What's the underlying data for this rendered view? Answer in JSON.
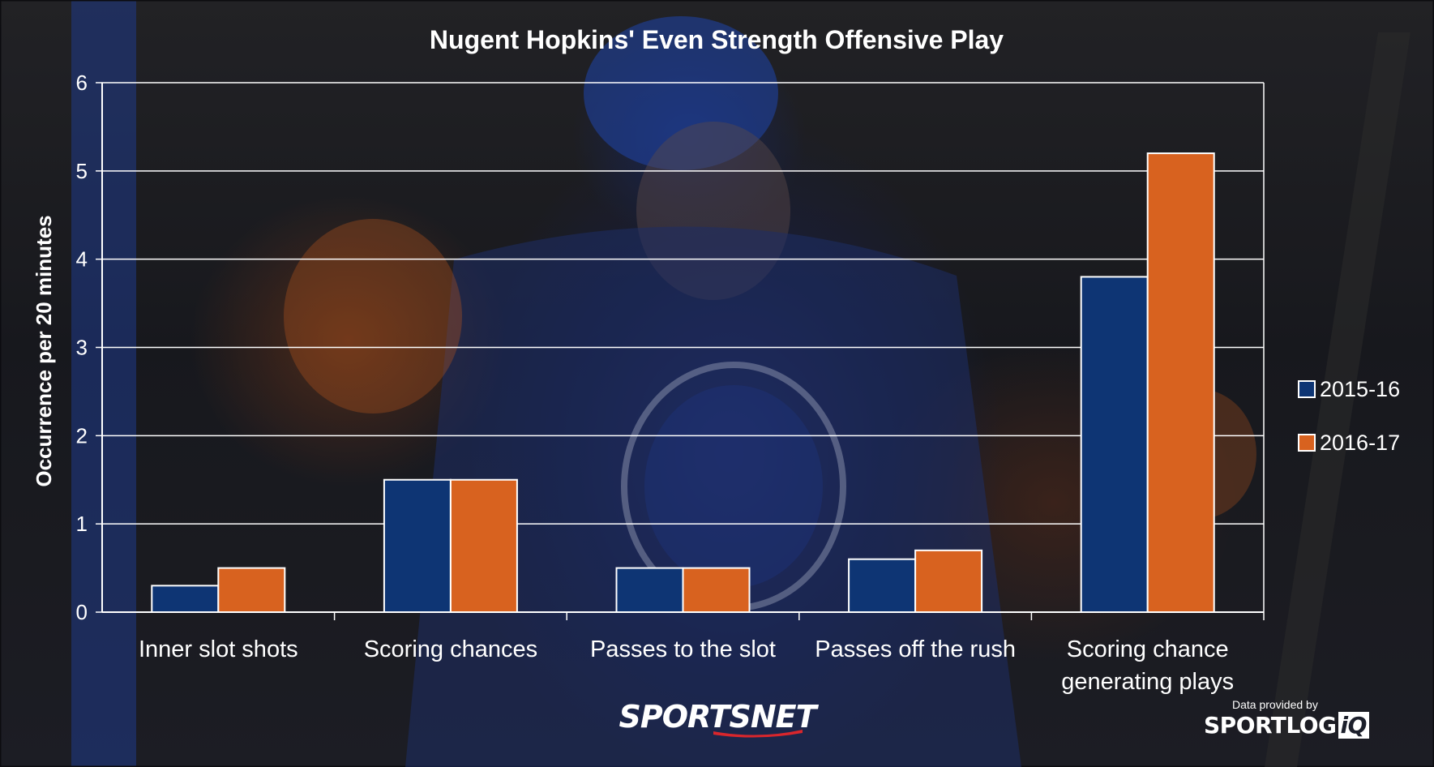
{
  "chart_data": {
    "type": "bar",
    "title": "Nugent Hopkins' Even Strength Offensive Play",
    "xlabel": "",
    "ylabel": "Occurrence per 20 minutes",
    "ylim": [
      0,
      6
    ],
    "yticks": [
      0,
      1,
      2,
      3,
      4,
      5,
      6
    ],
    "grid": true,
    "legend_position": "right",
    "categories": [
      [
        "Inner slot shots"
      ],
      [
        "Scoring chances"
      ],
      [
        "Passes to the slot"
      ],
      [
        "Passes off the rush"
      ],
      [
        "Scoring chance",
        "generating plays"
      ]
    ],
    "series": [
      {
        "name": "2015-16",
        "color": "#0e3574",
        "values": [
          0.3,
          1.5,
          0.5,
          0.6,
          3.8
        ]
      },
      {
        "name": "2016-17",
        "color": "#d8621f",
        "values": [
          0.5,
          1.5,
          0.5,
          0.7,
          5.2
        ]
      }
    ]
  },
  "branding": {
    "sportsnet": {
      "text_a": "SPORTS",
      "text_b": "NET"
    },
    "provider_label": "Data provided by",
    "sportlogiq": {
      "text_a": "SPORTLOG",
      "text_b": "iQ"
    }
  },
  "colors": {
    "gridline": "#ffffff",
    "axis": "#ffffff",
    "text": "#ffffff"
  }
}
